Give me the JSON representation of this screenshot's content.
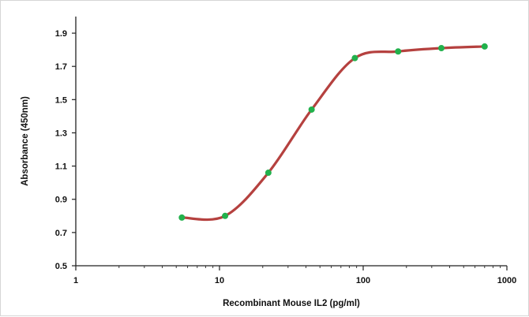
{
  "chart_data": {
    "type": "line",
    "title": "",
    "xlabel": "Recombinant Mouse IL2 (pg/ml)",
    "ylabel": "Absorbance (450nm)",
    "x_scale": "log",
    "xlim": [
      1,
      1000
    ],
    "ylim": [
      0.5,
      2.0
    ],
    "x_ticks": [
      1,
      10,
      100,
      1000
    ],
    "x_tick_labels": [
      "1",
      "10",
      "100",
      "1000"
    ],
    "y_ticks": [
      0.5,
      0.7,
      0.9,
      1.1,
      1.3,
      1.5,
      1.7,
      1.9
    ],
    "y_tick_labels": [
      "0.5",
      "0.7",
      "0.9",
      "1.1",
      "1.3",
      "1.5",
      "1.7",
      "1.9"
    ],
    "grid": false,
    "legend": "none",
    "series": [
      {
        "x": [
          5.47,
          10.94,
          21.88,
          43.75,
          87.5,
          175,
          350,
          700
        ],
        "y": [
          0.79,
          0.8,
          1.06,
          1.44,
          1.75,
          1.79,
          1.81,
          1.82
        ]
      }
    ],
    "curve_color": "#b5413f",
    "point_color": "#22b14c"
  }
}
